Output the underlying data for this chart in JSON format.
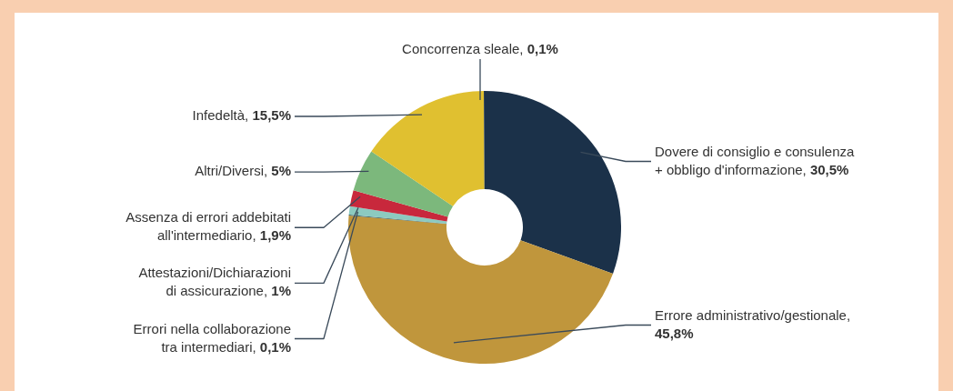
{
  "chart_data": {
    "type": "donut",
    "categories": [
      "Dovere di consiglio e consulenza + obbligo d'informazione, 30,5%",
      "Errore administrativo/gestionale, 45,8%",
      "Errori nella collaborazione tra intermediari, 0,1%",
      "Attestazioni/Dichiarazioni di assicurazione, 1%",
      "Assenza di errori addebitati all'intermediario, 1,9%",
      "Altri/Diversi, 5%",
      "Infedeltà, 15,5%",
      "Concorrenza sleale, 0,1%"
    ],
    "values": [
      30.5,
      45.8,
      0.1,
      1,
      1.9,
      5,
      15.5,
      0.1
    ],
    "colors": [
      "#1b3149",
      "#c0963c",
      "#2f5a60",
      "#8ccac0",
      "#c8283c",
      "#7cb87c",
      "#e0c030",
      "#1b3149"
    ]
  }
}
